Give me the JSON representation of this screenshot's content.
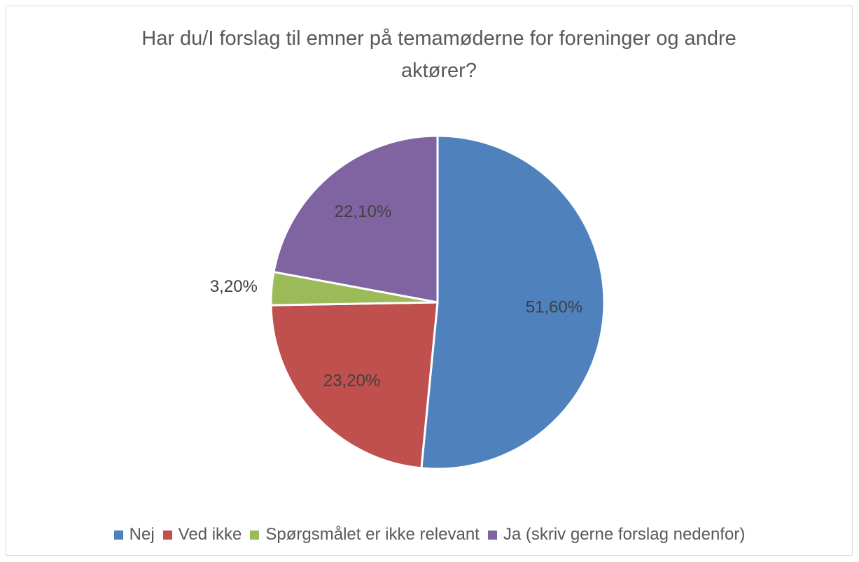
{
  "chart_data": {
    "type": "pie",
    "title": "Har du/I forslag til emner på temamøderne for foreninger og andre aktører?",
    "categories": [
      "Nej",
      "Ved ikke",
      "Spørgsmålet er ikke relevant",
      "Ja (skriv gerne forslag nedenfor)"
    ],
    "values": [
      51.6,
      23.2,
      3.2,
      22.1
    ],
    "value_labels": [
      "51,60%",
      "23,20%",
      "3,20%",
      "22,10%"
    ],
    "colors": [
      "#4f81bd",
      "#c0504d",
      "#9bbb59",
      "#8064a2"
    ],
    "legend": "bottom"
  }
}
